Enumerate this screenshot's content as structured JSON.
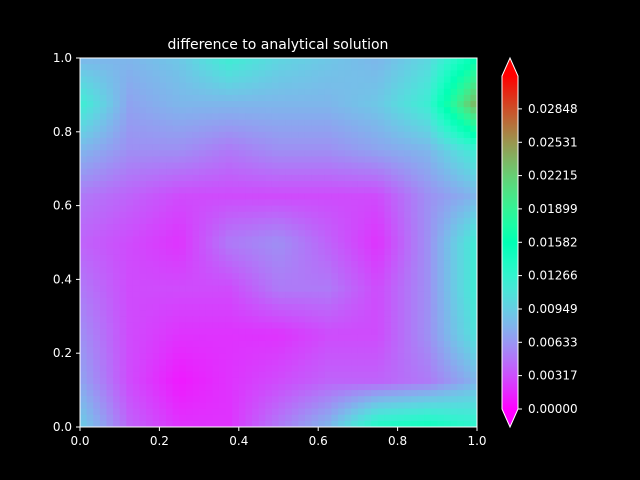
{
  "chart_data": {
    "type": "heatmap",
    "title": "difference to analytical solution",
    "xlabel": "",
    "ylabel": "",
    "xlim": [
      0.0,
      1.0
    ],
    "ylim": [
      0.0,
      1.0
    ],
    "x_ticks": [
      "0.0",
      "0.2",
      "0.4",
      "0.6",
      "0.8",
      "1.0"
    ],
    "y_ticks": [
      "0.0",
      "0.2",
      "0.4",
      "0.6",
      "0.8",
      "1.0"
    ],
    "colormap": "rainbow",
    "colorbar": {
      "extend": "both",
      "vmin": 0.0,
      "vmax": 0.0316,
      "ticks": [
        "0.00000",
        "0.00317",
        "0.00633",
        "0.00949",
        "0.01266",
        "0.01582",
        "0.01899",
        "0.02215",
        "0.02531",
        "0.02848"
      ]
    },
    "grid": false,
    "background": "#000000",
    "x": [
      0.0,
      0.125,
      0.25,
      0.375,
      0.5,
      0.625,
      0.75,
      0.875,
      1.0
    ],
    "y": [
      0.0,
      0.125,
      0.25,
      0.375,
      0.5,
      0.625,
      0.75,
      0.875,
      1.0
    ],
    "z": [
      [
        0.0095,
        0.004,
        0.002,
        0.002,
        0.005,
        0.008,
        0.014,
        0.015,
        0.013
      ],
      [
        0.007,
        0.003,
        0.001,
        0.002,
        0.003,
        0.004,
        0.004,
        0.005,
        0.008
      ],
      [
        0.006,
        0.003,
        0.002,
        0.002,
        0.002,
        0.003,
        0.003,
        0.006,
        0.011
      ],
      [
        0.005,
        0.003,
        0.003,
        0.003,
        0.005,
        0.005,
        0.003,
        0.006,
        0.012
      ],
      [
        0.004,
        0.003,
        0.002,
        0.005,
        0.006,
        0.004,
        0.002,
        0.006,
        0.012
      ],
      [
        0.005,
        0.004,
        0.003,
        0.003,
        0.003,
        0.003,
        0.003,
        0.006,
        0.008
      ],
      [
        0.008,
        0.006,
        0.006,
        0.005,
        0.006,
        0.006,
        0.007,
        0.008,
        0.012
      ],
      [
        0.012,
        0.007,
        0.008,
        0.008,
        0.008,
        0.008,
        0.009,
        0.012,
        0.024
      ],
      [
        0.008,
        0.008,
        0.009,
        0.012,
        0.01,
        0.009,
        0.008,
        0.01,
        0.016
      ]
    ]
  }
}
